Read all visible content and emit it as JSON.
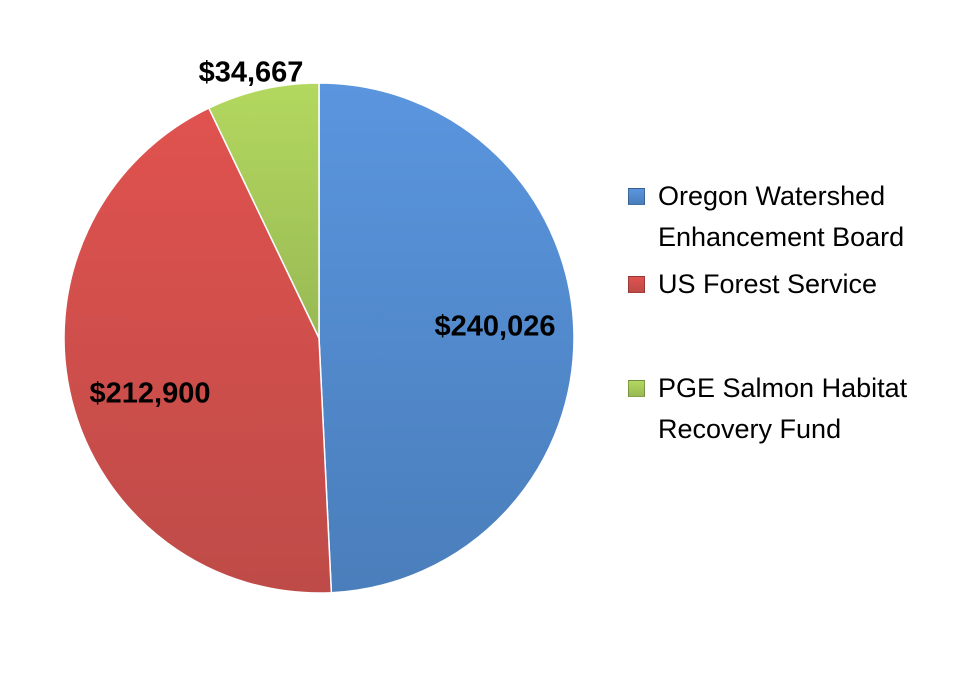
{
  "chart_data": {
    "type": "pie",
    "slices": [
      {
        "label": "Oregon Watershed Enhancement Board",
        "value": 240026,
        "display": "$240,026",
        "color": "#4a7ebb",
        "color_light": "#5a95de"
      },
      {
        "label": "US Forest Service",
        "value": 212900,
        "display": "$212,900",
        "color": "#be4b48",
        "color_light": "#e0524f"
      },
      {
        "label": "PGE Salmon Habitat Recovery Fund",
        "value": 34667,
        "display": "$34,667",
        "color": "#98b954",
        "color_light": "#b3d85f"
      }
    ],
    "start_angle": "12 o'clock",
    "direction": "clockwise",
    "legend_position": "right"
  }
}
